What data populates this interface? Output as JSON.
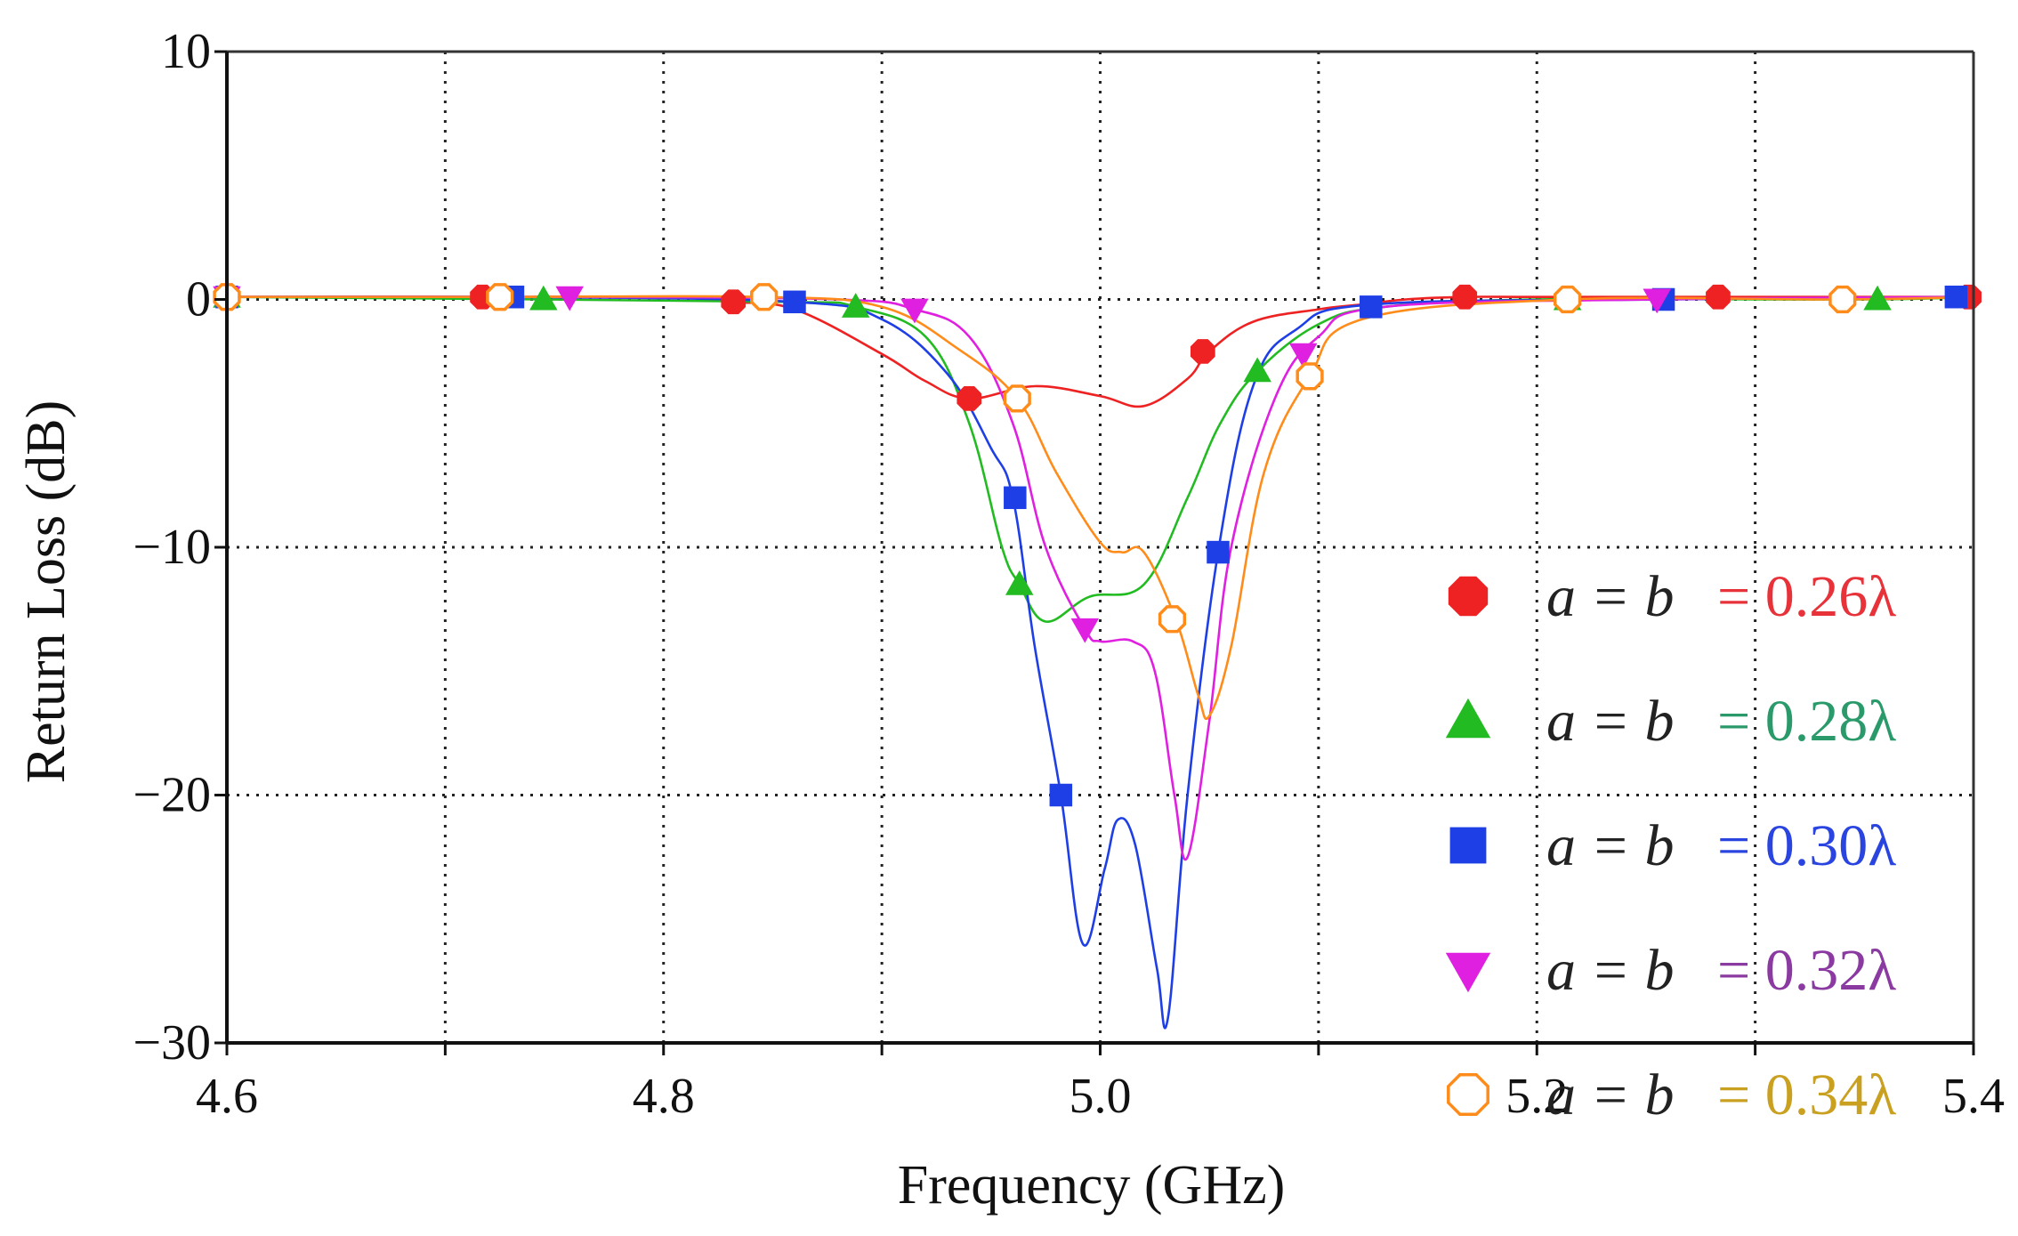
{
  "chart_data": {
    "type": "line",
    "title": "",
    "xlabel": "Frequency (GHz)",
    "ylabel": "Return Loss (dB)",
    "xlim": [
      4.6,
      5.4
    ],
    "ylim": [
      -30,
      10
    ],
    "xticks": [
      4.6,
      4.7,
      4.8,
      4.9,
      5.0,
      5.1,
      5.2,
      5.3,
      5.4
    ],
    "yticks": [
      10,
      0,
      -10,
      -20,
      -30
    ],
    "xtick_labels": [
      "4.6",
      "4.8",
      "5.0",
      "5.2",
      "5.4"
    ],
    "xtick_label_values": [
      4.6,
      4.8,
      5.0,
      5.2,
      5.4
    ],
    "ytick_labels": [
      "10",
      "0",
      "−10",
      "−20",
      "−30"
    ],
    "grid": true,
    "legend_position": "right",
    "series": [
      {
        "name": "a = b = 0.26λ",
        "lhs": "a = b",
        "rhs": "= 0.26λ",
        "color": "#ee2222",
        "text_color": "#e8323a",
        "marker": "octagon",
        "x": [
          4.6,
          4.72,
          4.8,
          4.83,
          4.86,
          4.9,
          4.92,
          4.94,
          4.97,
          5.0,
          5.02,
          5.04,
          5.05,
          5.07,
          5.1,
          5.12,
          5.14,
          5.167,
          5.2,
          5.283,
          5.35,
          5.398,
          5.4
        ],
        "y": [
          0.1,
          0.1,
          0.1,
          -0.1,
          -0.4,
          -2.2,
          -3.3,
          -4.0,
          -3.5,
          -3.9,
          -4.3,
          -3.2,
          -2.1,
          -0.9,
          -0.4,
          -0.2,
          0.0,
          0.1,
          0.1,
          0.1,
          0.1,
          0.1,
          0.1
        ],
        "marker_x": [
          4.6,
          4.717,
          4.832,
          4.94,
          5.047,
          5.167,
          5.283,
          5.398
        ],
        "marker_y": [
          0.1,
          0.1,
          -0.1,
          -4.0,
          -2.1,
          0.1,
          0.1,
          0.1
        ]
      },
      {
        "name": "a = b = 0.28λ",
        "lhs": "a = b",
        "rhs": "= 0.28λ",
        "color": "#22bb22",
        "text_color": "#2a9a6a",
        "marker": "triangle-up",
        "x": [
          4.6,
          4.745,
          4.86,
          4.888,
          4.92,
          4.94,
          4.955,
          4.963,
          4.975,
          4.995,
          5.02,
          5.04,
          5.055,
          5.072,
          5.1,
          5.13,
          5.2,
          5.35,
          5.4
        ],
        "y": [
          0.1,
          0.0,
          -0.1,
          -0.3,
          -1.5,
          -5.0,
          -10.0,
          -11.5,
          -13.0,
          -12.0,
          -11.5,
          -8.0,
          -5.0,
          -2.9,
          -1.0,
          -0.3,
          0.0,
          0.0,
          0.1
        ],
        "marker_x": [
          4.6,
          4.745,
          4.888,
          4.963,
          5.072,
          5.214,
          5.356
        ],
        "marker_y": [
          0.1,
          0.0,
          -0.3,
          -11.5,
          -2.9,
          0.0,
          0.0
        ]
      },
      {
        "name": "a = b = 0.30λ",
        "lhs": "a = b",
        "rhs": "= 0.30λ",
        "color": "#1f3fe6",
        "text_color": "#2a44e0",
        "marker": "square",
        "x": [
          4.6,
          4.731,
          4.86,
          4.9,
          4.93,
          4.95,
          4.96,
          4.97,
          4.982,
          4.992,
          5.002,
          5.008,
          5.016,
          5.026,
          5.031,
          5.04,
          5.054,
          5.07,
          5.09,
          5.125,
          5.26,
          5.4
        ],
        "y": [
          0.1,
          0.1,
          -0.1,
          -0.8,
          -3.0,
          -6.0,
          -8.0,
          -14.0,
          -20.0,
          -26.0,
          -23.0,
          -21.0,
          -22.0,
          -27.0,
          -29.0,
          -20.0,
          -10.2,
          -3.5,
          -1.2,
          -0.2,
          0.0,
          0.1
        ],
        "marker_x": [
          4.6,
          4.731,
          4.86,
          4.961,
          4.982,
          5.054,
          5.124,
          5.258,
          5.392
        ],
        "marker_y": [
          0.1,
          0.1,
          -0.1,
          -8.0,
          -20.0,
          -10.2,
          -0.3,
          0.0,
          0.1
        ]
      },
      {
        "name": "a = b = 0.32λ",
        "lhs": "a = b",
        "rhs": "= 0.32λ",
        "color": "#e020e0",
        "text_color": "#8a3aa0",
        "marker": "triangle-down",
        "x": [
          4.6,
          4.757,
          4.88,
          4.915,
          4.94,
          4.96,
          4.975,
          4.993,
          5.0,
          5.015,
          5.025,
          5.034,
          5.04,
          5.05,
          5.06,
          5.08,
          5.1,
          5.13,
          5.255,
          5.4
        ],
        "y": [
          0.1,
          0.1,
          0.0,
          -0.4,
          -1.5,
          -5.0,
          -10.0,
          -13.3,
          -13.8,
          -13.8,
          -15.0,
          -20.0,
          -22.5,
          -17.0,
          -10.0,
          -4.0,
          -1.5,
          -0.3,
          0.0,
          0.1
        ],
        "marker_x": [
          4.6,
          4.757,
          4.915,
          4.993,
          5.093,
          5.255
        ],
        "marker_y": [
          0.1,
          0.1,
          -0.4,
          -13.3,
          -2.2,
          0.0
        ]
      },
      {
        "name": "a = b = 0.34λ",
        "lhs": "a = b",
        "rhs": "= 0.34λ",
        "color": "#ff8c1a",
        "text_color": "#c9a020",
        "marker": "circle-open",
        "x": [
          4.6,
          4.725,
          4.846,
          4.9,
          4.935,
          4.962,
          4.98,
          5.0,
          5.01,
          5.02,
          5.035,
          5.045,
          5.05,
          5.06,
          5.075,
          5.096,
          5.12,
          5.214,
          5.34,
          5.4
        ],
        "y": [
          0.1,
          0.1,
          0.1,
          -0.3,
          -2.0,
          -4.0,
          -7.0,
          -9.8,
          -10.2,
          -10.2,
          -13.0,
          -16.0,
          -16.8,
          -14.0,
          -7.0,
          -3.1,
          -0.8,
          0.0,
          0.0,
          0.1
        ],
        "marker_x": [
          4.6,
          4.725,
          4.846,
          4.962,
          5.033,
          5.096,
          5.214,
          5.34
        ],
        "marker_y": [
          0.1,
          0.1,
          0.1,
          -4.0,
          -12.9,
          -3.1,
          0.0,
          0.0
        ]
      }
    ]
  }
}
